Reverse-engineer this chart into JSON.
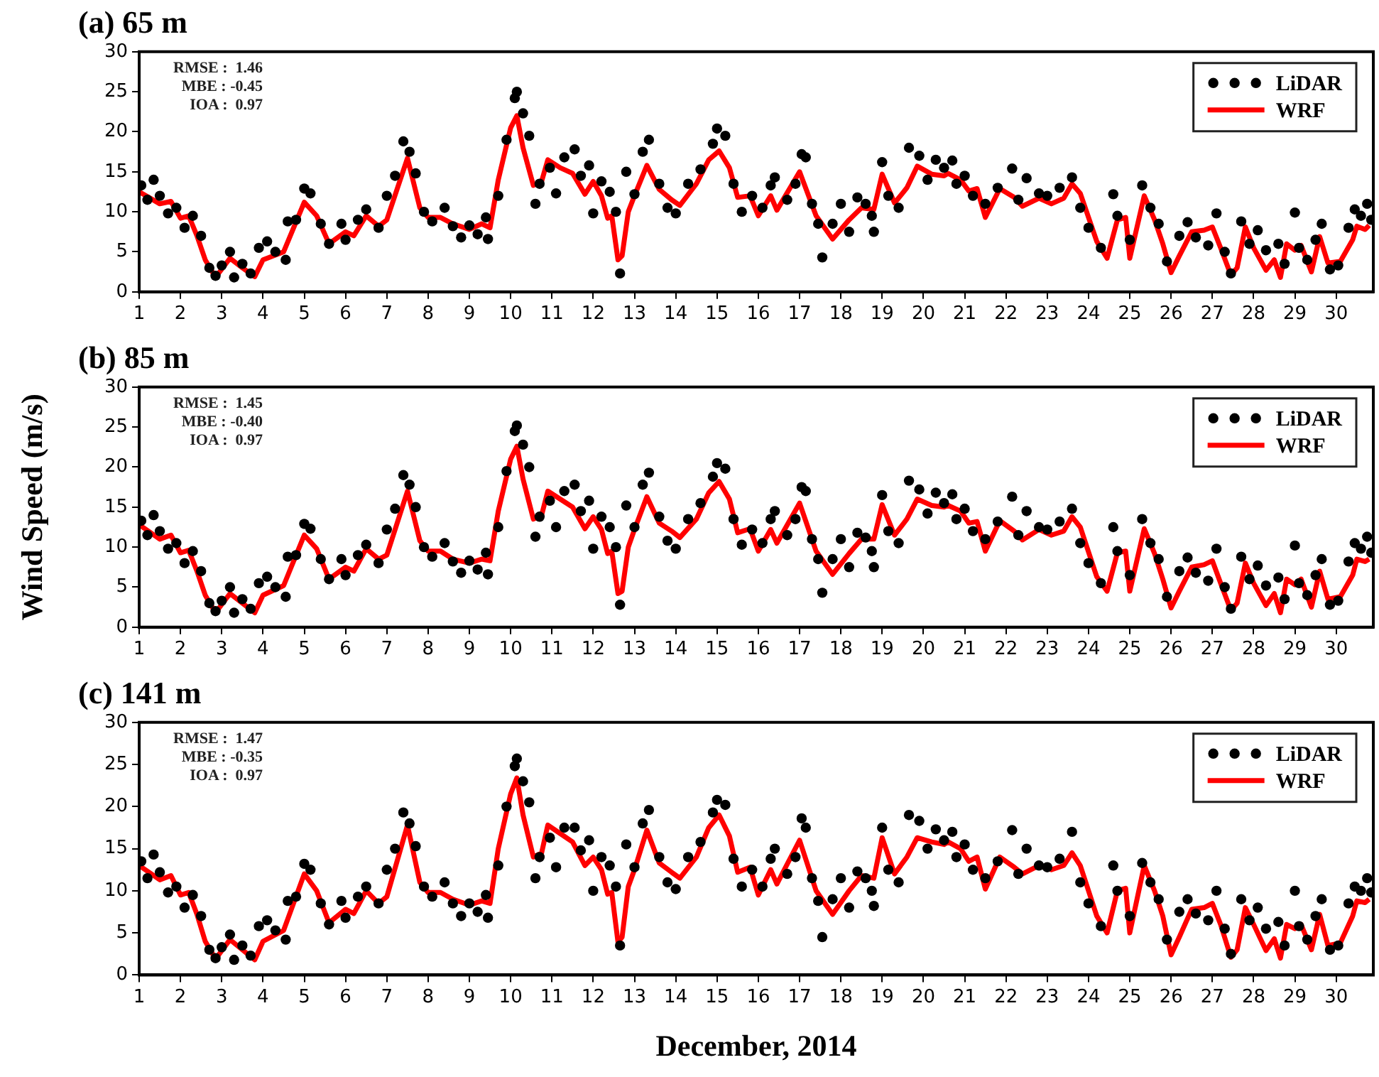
{
  "chart_data": [
    {
      "type": "line",
      "title": "(a) 65 m",
      "annotations": [
        "RMSE :  1.46",
        "MBE : -0.45",
        "IOA :  0.97"
      ],
      "xlim": [
        1,
        30.9
      ],
      "xticks": [
        1,
        2,
        3,
        4,
        5,
        6,
        7,
        8,
        9,
        10,
        11,
        12,
        13,
        14,
        15,
        16,
        17,
        18,
        19,
        20,
        21,
        22,
        23,
        24,
        25,
        26,
        27,
        28,
        29,
        30
      ],
      "ylim": [
        0,
        30
      ],
      "yticks": [
        0,
        5,
        10,
        15,
        20,
        25,
        30
      ],
      "legend": "top right",
      "series": [
        {
          "name": "LiDAR",
          "type": "scatter",
          "marker": "circle",
          "color": "#000000",
          "x": [
            1.05,
            1.2,
            1.35,
            1.5,
            1.7,
            1.9,
            2.1,
            2.3,
            2.5,
            2.7,
            2.85,
            3.0,
            3.2,
            3.3,
            3.5,
            3.7,
            3.9,
            4.1,
            4.3,
            4.55,
            4.6,
            4.8,
            5.0,
            5.15,
            5.4,
            5.6,
            5.9,
            6.0,
            6.3,
            6.5,
            6.8,
            7.0,
            7.2,
            7.4,
            7.55,
            7.7,
            7.9,
            8.1,
            8.4,
            8.6,
            8.8,
            9.0,
            9.2,
            9.4,
            9.45,
            9.7,
            9.9,
            10.1,
            10.15,
            10.3,
            10.45,
            10.6,
            10.7,
            10.95,
            11.1,
            11.3,
            11.55,
            11.7,
            11.9,
            12.0,
            12.2,
            12.4,
            12.55,
            12.65,
            12.8,
            13.0,
            13.2,
            13.35,
            13.6,
            13.8,
            14.0,
            14.3,
            14.6,
            14.9,
            15.0,
            15.2,
            15.4,
            15.6,
            15.85,
            16.1,
            16.3,
            16.4,
            16.7,
            16.9,
            17.05,
            17.15,
            17.3,
            17.45,
            17.55,
            17.8,
            18.0,
            18.2,
            18.4,
            18.6,
            18.75,
            18.8,
            19.0,
            19.15,
            19.4,
            19.65,
            19.9,
            20.1,
            20.3,
            20.5,
            20.7,
            20.8,
            21.0,
            21.2,
            21.5,
            21.8,
            22.15,
            22.3,
            22.5,
            22.8,
            23.0,
            23.3,
            23.6,
            23.8,
            24.0,
            24.3,
            24.6,
            24.7,
            25.0,
            25.3,
            25.5,
            25.7,
            25.9,
            26.2,
            26.4,
            26.6,
            26.9,
            27.1,
            27.3,
            27.45,
            27.7,
            27.9,
            28.1,
            28.3,
            28.6,
            28.75,
            29.0,
            29.1,
            29.3,
            29.5,
            29.65,
            29.85,
            30.05,
            30.3,
            30.45,
            30.6,
            30.75,
            30.85
          ],
          "values": [
            13.3,
            11.5,
            14,
            12,
            9.8,
            10.5,
            8,
            9.5,
            7,
            3,
            2,
            3.3,
            5,
            1.8,
            3.5,
            2.3,
            5.5,
            6.3,
            5,
            4,
            8.8,
            9,
            12.9,
            12.3,
            8.5,
            6,
            8.5,
            6.5,
            9,
            10.3,
            8,
            12,
            14.5,
            18.8,
            17.5,
            14.8,
            10,
            8.8,
            10.5,
            8.2,
            6.8,
            8.3,
            7.2,
            9.3,
            6.6,
            12,
            19,
            24.2,
            25,
            22.3,
            19.5,
            11,
            13.5,
            15.5,
            12.3,
            16.8,
            17.8,
            14.5,
            15.8,
            9.8,
            13.8,
            12.5,
            10,
            2.3,
            15,
            12.2,
            17.5,
            19,
            13.5,
            10.5,
            9.8,
            13.5,
            15.3,
            18.5,
            20.4,
            19.5,
            13.5,
            10,
            12,
            10.5,
            13.3,
            14.3,
            11.5,
            13.5,
            17.2,
            16.8,
            11,
            8.5,
            4.3,
            8.5,
            11,
            7.5,
            11.8,
            11,
            9.5,
            7.5,
            16.2,
            12,
            10.5,
            18,
            17,
            14,
            16.5,
            15.5,
            16.4,
            13.5,
            14.5,
            12,
            11,
            13,
            15.4,
            11.5,
            14.2,
            12.3,
            12,
            13,
            14.3,
            10.5,
            8,
            5.5,
            12.2,
            9.5,
            6.5,
            13.3,
            10.5,
            8.5,
            3.8,
            7,
            8.7,
            6.8,
            5.8,
            9.8,
            5,
            2.3,
            8.8,
            6,
            7.7,
            5.2,
            6,
            3.5,
            9.9,
            5.5,
            4,
            6.5,
            8.5,
            2.8,
            3.3,
            8,
            10.3,
            9.5,
            11,
            9
          ]
        },
        {
          "name": "WRF",
          "type": "line",
          "marker": "none",
          "line_style": "solid",
          "color": "#ff0000",
          "x": [
            1,
            1.5,
            1.77,
            2,
            2.2,
            2.4,
            2.6,
            2.85,
            3.2,
            3.5,
            3.8,
            4,
            4.5,
            5,
            5.3,
            5.6,
            6,
            6.2,
            6.5,
            6.8,
            7,
            7.5,
            7.8,
            8,
            8.3,
            8.6,
            9,
            9.3,
            9.5,
            9.7,
            10,
            10.15,
            10.3,
            10.55,
            10.75,
            10.9,
            11.2,
            11.5,
            11.8,
            12,
            12.2,
            12.35,
            12.45,
            12.6,
            12.7,
            12.85,
            13,
            13.3,
            13.6,
            13.9,
            14.1,
            14.5,
            14.8,
            15.05,
            15.3,
            15.5,
            15.8,
            16,
            16.3,
            16.45,
            17,
            17.4,
            17.8,
            18.2,
            18.5,
            18.8,
            19,
            19.3,
            19.6,
            19.85,
            20.2,
            20.5,
            20.6,
            20.9,
            21.1,
            21.3,
            21.5,
            21.85,
            22.2,
            22.4,
            22.8,
            23.1,
            23.4,
            23.6,
            23.8,
            24.2,
            24.45,
            24.7,
            24.9,
            25,
            25.35,
            25.6,
            25.8,
            26,
            26.2,
            26.5,
            26.8,
            27,
            27.2,
            27.45,
            27.6,
            27.8,
            28,
            28.3,
            28.5,
            28.65,
            28.8,
            29,
            29.15,
            29.4,
            29.6,
            29.8,
            30.1,
            30.4,
            30.5,
            30.7,
            30.8
          ],
          "values": [
            12.5,
            11,
            11.3,
            9.2,
            9.5,
            7,
            4,
            1.8,
            4.2,
            3,
            1.9,
            4,
            5,
            11.2,
            9.5,
            6,
            7.5,
            7,
            9.5,
            8.2,
            9,
            16.7,
            10.5,
            9.3,
            9.3,
            8.5,
            7.8,
            8.5,
            8,
            14,
            20.5,
            22,
            18,
            13.3,
            13.8,
            16.5,
            15.5,
            14.8,
            12.2,
            13.8,
            12,
            9.2,
            9.5,
            4,
            4.5,
            10,
            12,
            15.8,
            12.8,
            11.5,
            10.8,
            13.5,
            16.5,
            17.6,
            15.5,
            11.8,
            12,
            9.5,
            12,
            10.2,
            15,
            9.5,
            6.6,
            9,
            10.5,
            10.3,
            14.7,
            11.1,
            13,
            15.7,
            14.7,
            14.5,
            14.8,
            14,
            12.6,
            12.9,
            9.3,
            12.9,
            11.8,
            10.7,
            11.7,
            11,
            11.7,
            13.5,
            12.3,
            6.3,
            4.2,
            9,
            9.3,
            4.2,
            12,
            9,
            6,
            2.4,
            4.5,
            7.5,
            7.7,
            8.1,
            5.5,
            2.1,
            3,
            8.1,
            5.5,
            2.7,
            4,
            1.8,
            6,
            5.2,
            5.8,
            2.5,
            6.9,
            3.6,
            3.8,
            6.5,
            8.2,
            7.8,
            8.3
          ]
        }
      ]
    },
    {
      "type": "line",
      "title": "(b) 85 m",
      "ylabel": "Wind Speed (m/s)",
      "annotations": [
        "RMSE :  1.45",
        "MBE : -0.40",
        "IOA :  0.97"
      ],
      "xlim": [
        1,
        30.9
      ],
      "xticks": [
        1,
        2,
        3,
        4,
        5,
        6,
        7,
        8,
        9,
        10,
        11,
        12,
        13,
        14,
        15,
        16,
        17,
        18,
        19,
        20,
        21,
        22,
        23,
        24,
        25,
        26,
        27,
        28,
        29,
        30
      ],
      "ylim": [
        0,
        30
      ],
      "yticks": [
        0,
        5,
        10,
        15,
        20,
        25,
        30
      ],
      "legend": "top right",
      "series": [
        {
          "name": "LiDAR",
          "type": "scatter",
          "marker": "circle",
          "color": "#000000",
          "x": [
            1.05,
            1.2,
            1.35,
            1.5,
            1.7,
            1.9,
            2.1,
            2.3,
            2.5,
            2.7,
            2.85,
            3.0,
            3.2,
            3.3,
            3.5,
            3.7,
            3.9,
            4.1,
            4.3,
            4.55,
            4.6,
            4.8,
            5.0,
            5.15,
            5.4,
            5.6,
            5.9,
            6.0,
            6.3,
            6.5,
            6.8,
            7.0,
            7.2,
            7.4,
            7.55,
            7.7,
            7.9,
            8.1,
            8.4,
            8.6,
            8.8,
            9.0,
            9.2,
            9.4,
            9.45,
            9.7,
            9.9,
            10.1,
            10.15,
            10.3,
            10.45,
            10.6,
            10.7,
            10.95,
            11.1,
            11.3,
            11.55,
            11.7,
            11.9,
            12.0,
            12.2,
            12.4,
            12.55,
            12.65,
            12.8,
            13.0,
            13.2,
            13.35,
            13.6,
            13.8,
            14.0,
            14.3,
            14.6,
            14.9,
            15.0,
            15.2,
            15.4,
            15.6,
            15.85,
            16.1,
            16.3,
            16.4,
            16.7,
            16.9,
            17.05,
            17.15,
            17.3,
            17.45,
            17.55,
            17.8,
            18.0,
            18.2,
            18.4,
            18.6,
            18.75,
            18.8,
            19.0,
            19.15,
            19.4,
            19.65,
            19.9,
            20.1,
            20.3,
            20.5,
            20.7,
            20.8,
            21.0,
            21.2,
            21.5,
            21.8,
            22.15,
            22.3,
            22.5,
            22.8,
            23.0,
            23.3,
            23.6,
            23.8,
            24.0,
            24.3,
            24.6,
            24.7,
            25.0,
            25.3,
            25.5,
            25.7,
            25.9,
            26.2,
            26.4,
            26.6,
            26.9,
            27.1,
            27.3,
            27.45,
            27.7,
            27.9,
            28.1,
            28.3,
            28.6,
            28.75,
            29.0,
            29.1,
            29.3,
            29.5,
            29.65,
            29.85,
            30.05,
            30.3,
            30.45,
            30.6,
            30.75,
            30.85
          ],
          "values": [
            13.3,
            11.5,
            14,
            12,
            9.8,
            10.5,
            8,
            9.5,
            7,
            3,
            2,
            3.3,
            5,
            1.8,
            3.5,
            2.3,
            5.5,
            6.3,
            5,
            3.8,
            8.8,
            9,
            12.9,
            12.3,
            8.5,
            6,
            8.5,
            6.5,
            9,
            10.3,
            8,
            12.2,
            14.8,
            19,
            17.8,
            15,
            10,
            8.8,
            10.5,
            8.2,
            6.8,
            8.3,
            7.2,
            9.3,
            6.6,
            12.5,
            19.5,
            24.5,
            25.2,
            22.8,
            20,
            11.3,
            13.8,
            15.8,
            12.5,
            17,
            17.8,
            14.5,
            15.8,
            9.8,
            13.8,
            12.5,
            10,
            2.8,
            15.2,
            12.5,
            17.8,
            19.3,
            13.8,
            10.8,
            9.8,
            13.5,
            15.5,
            18.8,
            20.5,
            19.8,
            13.5,
            10.3,
            12.2,
            10.5,
            13.5,
            14.5,
            11.5,
            13.5,
            17.5,
            17,
            11,
            8.5,
            4.3,
            8.5,
            11,
            7.5,
            11.8,
            11.2,
            9.5,
            7.5,
            16.5,
            12,
            10.5,
            18.3,
            17.2,
            14.2,
            16.8,
            15.5,
            16.6,
            13.5,
            14.8,
            12,
            11,
            13.2,
            16.3,
            11.5,
            14.5,
            12.5,
            12.2,
            13.2,
            14.8,
            10.5,
            8,
            5.5,
            12.5,
            9.5,
            6.5,
            13.5,
            10.5,
            8.5,
            3.8,
            7,
            8.7,
            6.8,
            5.8,
            9.8,
            5,
            2.3,
            8.8,
            6,
            7.7,
            5.2,
            6.2,
            3.5,
            10.2,
            5.5,
            4,
            6.5,
            8.5,
            2.8,
            3.3,
            8.2,
            10.5,
            9.8,
            11.3,
            9.3
          ]
        },
        {
          "name": "WRF",
          "type": "line",
          "marker": "none",
          "line_style": "solid",
          "color": "#ff0000",
          "x": [
            1,
            1.5,
            1.77,
            2,
            2.2,
            2.4,
            2.6,
            2.85,
            3.2,
            3.5,
            3.8,
            4,
            4.5,
            5,
            5.3,
            5.6,
            6,
            6.2,
            6.5,
            6.8,
            7,
            7.5,
            7.8,
            8,
            8.3,
            8.6,
            9,
            9.3,
            9.5,
            9.7,
            10,
            10.15,
            10.3,
            10.55,
            10.75,
            10.9,
            11.2,
            11.5,
            11.8,
            12,
            12.2,
            12.35,
            12.45,
            12.6,
            12.7,
            12.85,
            13,
            13.3,
            13.6,
            13.9,
            14.1,
            14.5,
            14.8,
            15.05,
            15.3,
            15.5,
            15.8,
            16,
            16.3,
            16.45,
            17,
            17.4,
            17.8,
            18.2,
            18.5,
            18.8,
            19,
            19.3,
            19.6,
            19.85,
            20.2,
            20.5,
            20.6,
            20.9,
            21.1,
            21.3,
            21.5,
            21.85,
            22.2,
            22.4,
            22.8,
            23.1,
            23.4,
            23.6,
            23.8,
            24.2,
            24.45,
            24.7,
            24.9,
            25,
            25.35,
            25.6,
            25.8,
            26,
            26.2,
            26.5,
            26.8,
            27,
            27.2,
            27.45,
            27.6,
            27.8,
            28,
            28.3,
            28.5,
            28.65,
            28.8,
            29,
            29.15,
            29.4,
            29.6,
            29.8,
            30.1,
            30.4,
            30.5,
            30.7,
            30.8
          ],
          "values": [
            12.8,
            11,
            11.5,
            9.3,
            9.6,
            7,
            4,
            1.8,
            4.2,
            3,
            1.8,
            4,
            5.2,
            11.5,
            9.8,
            6,
            7.5,
            7,
            9.8,
            8.5,
            9,
            17,
            10.8,
            9.5,
            9.5,
            8.5,
            8,
            8.5,
            8.3,
            14.5,
            21,
            22.6,
            18.5,
            13.5,
            14,
            17,
            16,
            15,
            12.3,
            13.8,
            12.2,
            9.2,
            9.5,
            4.2,
            4.5,
            10,
            12.2,
            16.3,
            13,
            12,
            11.2,
            13.5,
            16.8,
            18.2,
            16,
            11.8,
            12.3,
            9.5,
            12.2,
            10.5,
            15.5,
            9.5,
            6.6,
            9.2,
            11,
            11,
            15.3,
            11.5,
            13.5,
            16,
            15.2,
            15,
            15.2,
            14.5,
            13,
            13.2,
            9.5,
            13.3,
            12,
            10.9,
            12.2,
            11.5,
            12,
            13.8,
            12.5,
            6.3,
            4.5,
            9.3,
            9.5,
            4.5,
            12.3,
            9.2,
            6,
            2.4,
            4.5,
            7.5,
            7.8,
            8.3,
            5.5,
            2.1,
            3,
            8,
            5.5,
            2.7,
            4.2,
            1.8,
            6,
            5.3,
            6,
            2.5,
            7,
            3.5,
            3.8,
            6.5,
            8.5,
            8.2,
            8.5
          ]
        }
      ]
    },
    {
      "type": "line",
      "title": "(c) 141 m",
      "xlabel": "December, 2014",
      "annotations": [
        "RMSE :  1.47",
        "MBE : -0.35",
        "IOA :  0.97"
      ],
      "xlim": [
        1,
        30.9
      ],
      "xticks": [
        1,
        2,
        3,
        4,
        5,
        6,
        7,
        8,
        9,
        10,
        11,
        12,
        13,
        14,
        15,
        16,
        17,
        18,
        19,
        20,
        21,
        22,
        23,
        24,
        25,
        26,
        27,
        28,
        29,
        30
      ],
      "ylim": [
        0,
        30
      ],
      "yticks": [
        0,
        5,
        10,
        15,
        20,
        25,
        30
      ],
      "legend": "top right",
      "series": [
        {
          "name": "LiDAR",
          "type": "scatter",
          "marker": "circle",
          "color": "#000000",
          "x": [
            1.05,
            1.2,
            1.35,
            1.5,
            1.7,
            1.9,
            2.1,
            2.3,
            2.5,
            2.7,
            2.85,
            3.0,
            3.2,
            3.3,
            3.5,
            3.7,
            3.9,
            4.1,
            4.3,
            4.55,
            4.6,
            4.8,
            5.0,
            5.15,
            5.4,
            5.6,
            5.9,
            6.0,
            6.3,
            6.5,
            6.8,
            7.0,
            7.2,
            7.4,
            7.55,
            7.7,
            7.9,
            8.1,
            8.4,
            8.6,
            8.8,
            9.0,
            9.2,
            9.4,
            9.45,
            9.7,
            9.9,
            10.1,
            10.15,
            10.3,
            10.45,
            10.6,
            10.7,
            10.95,
            11.1,
            11.3,
            11.55,
            11.7,
            11.9,
            12.0,
            12.2,
            12.4,
            12.55,
            12.65,
            12.8,
            13.0,
            13.2,
            13.35,
            13.6,
            13.8,
            14.0,
            14.3,
            14.6,
            14.9,
            15.0,
            15.2,
            15.4,
            15.6,
            15.85,
            16.1,
            16.3,
            16.4,
            16.7,
            16.9,
            17.05,
            17.15,
            17.3,
            17.45,
            17.55,
            17.8,
            18.0,
            18.2,
            18.4,
            18.6,
            18.75,
            18.8,
            19.0,
            19.15,
            19.4,
            19.65,
            19.9,
            20.1,
            20.3,
            20.5,
            20.7,
            20.8,
            21.0,
            21.2,
            21.5,
            21.8,
            22.15,
            22.3,
            22.5,
            22.8,
            23.0,
            23.3,
            23.6,
            23.8,
            24.0,
            24.3,
            24.6,
            24.7,
            25.0,
            25.3,
            25.5,
            25.7,
            25.9,
            26.2,
            26.4,
            26.6,
            26.9,
            27.1,
            27.3,
            27.45,
            27.7,
            27.9,
            28.1,
            28.3,
            28.6,
            28.75,
            29.0,
            29.1,
            29.3,
            29.5,
            29.65,
            29.85,
            30.05,
            30.3,
            30.45,
            30.6,
            30.75,
            30.85
          ],
          "values": [
            13.5,
            11.5,
            14.3,
            12.2,
            9.8,
            10.5,
            8,
            9.5,
            7,
            3,
            2,
            3.3,
            4.8,
            1.8,
            3.5,
            2.3,
            5.8,
            6.5,
            5.3,
            4.2,
            8.8,
            9.3,
            13.2,
            12.5,
            8.5,
            6,
            8.8,
            6.8,
            9.3,
            10.5,
            8.5,
            12.5,
            15,
            19.3,
            18,
            15.3,
            10.5,
            9.3,
            11,
            8.5,
            7,
            8.5,
            7.5,
            9.5,
            6.8,
            13,
            20,
            24.8,
            25.7,
            23,
            20.5,
            11.5,
            14,
            16.3,
            12.8,
            17.5,
            17.5,
            14.8,
            16,
            10,
            14,
            13,
            10.5,
            3.5,
            15.5,
            12.8,
            18,
            19.6,
            14,
            11,
            10.2,
            14,
            15.8,
            19.3,
            20.8,
            20.2,
            13.8,
            10.5,
            12.5,
            10.5,
            13.8,
            15,
            12,
            14,
            18.6,
            17.5,
            11.5,
            8.8,
            4.5,
            9,
            11.5,
            8,
            12.3,
            11.5,
            10,
            8.2,
            17.5,
            12.5,
            11,
            19,
            18.3,
            15,
            17.3,
            16,
            17,
            14,
            15.5,
            12.5,
            11.5,
            13.5,
            17.2,
            12,
            15,
            13,
            12.8,
            13.8,
            17,
            11,
            8.5,
            5.8,
            13,
            10,
            7,
            13.3,
            11,
            9,
            4.2,
            7.5,
            9,
            7.3,
            6.5,
            10,
            5.5,
            2.5,
            9,
            6.5,
            8,
            5.5,
            6.3,
            3.5,
            10,
            5.8,
            4.2,
            7,
            9,
            3,
            3.5,
            8.5,
            10.5,
            10,
            11.5,
            9.8
          ]
        },
        {
          "name": "WRF",
          "type": "line",
          "marker": "none",
          "line_style": "solid",
          "color": "#ff0000",
          "x": [
            1,
            1.5,
            1.77,
            2,
            2.2,
            2.4,
            2.6,
            2.85,
            3.2,
            3.5,
            3.8,
            4,
            4.5,
            5,
            5.3,
            5.6,
            6,
            6.2,
            6.5,
            6.8,
            7,
            7.5,
            7.8,
            8,
            8.3,
            8.6,
            9,
            9.3,
            9.5,
            9.7,
            10,
            10.15,
            10.3,
            10.55,
            10.75,
            10.9,
            11.2,
            11.5,
            11.8,
            12,
            12.2,
            12.35,
            12.45,
            12.6,
            12.7,
            12.85,
            13,
            13.3,
            13.6,
            13.9,
            14.1,
            14.5,
            14.8,
            15.05,
            15.3,
            15.5,
            15.8,
            16,
            16.3,
            16.45,
            17,
            17.4,
            17.8,
            18.2,
            18.5,
            18.8,
            19,
            19.3,
            19.6,
            19.85,
            20.2,
            20.5,
            20.6,
            20.9,
            21.1,
            21.3,
            21.5,
            21.85,
            22.2,
            22.4,
            22.8,
            23.1,
            23.4,
            23.6,
            23.8,
            24.2,
            24.45,
            24.7,
            24.9,
            25,
            25.35,
            25.6,
            25.8,
            26,
            26.2,
            26.5,
            26.8,
            27,
            27.2,
            27.45,
            27.6,
            27.8,
            28,
            28.3,
            28.5,
            28.65,
            28.8,
            29,
            29.15,
            29.4,
            29.6,
            29.8,
            30.1,
            30.4,
            30.5,
            30.7,
            30.8
          ],
          "values": [
            13,
            11.3,
            11.8,
            9.5,
            9.8,
            7.2,
            4,
            1.9,
            4.2,
            3,
            1.8,
            4,
            5.3,
            12,
            10,
            6.2,
            7.8,
            7.3,
            10,
            8.5,
            9.3,
            17.8,
            11,
            9.8,
            9.8,
            9,
            8.3,
            8.8,
            8.5,
            15,
            21.5,
            23.4,
            19,
            14,
            14.5,
            17.8,
            16.8,
            15.8,
            13,
            14,
            12.5,
            9.6,
            9.8,
            3.9,
            4.5,
            10.5,
            12.5,
            17.2,
            13.3,
            12.2,
            11.5,
            14,
            17.5,
            19,
            16.5,
            12.2,
            12.8,
            9.5,
            12.5,
            10.8,
            16,
            10,
            7.2,
            10,
            11.8,
            11.5,
            16.3,
            12,
            14,
            16.3,
            15.8,
            15.5,
            15.8,
            15,
            13.5,
            14,
            10.2,
            14,
            12.8,
            12,
            13,
            12.5,
            13,
            14.5,
            13,
            7,
            5,
            10,
            10.3,
            5,
            13,
            10,
            7,
            2.4,
            4.5,
            7.8,
            8,
            8.5,
            6,
            2.1,
            3,
            8,
            6,
            2.9,
            4.3,
            2,
            6,
            5.5,
            6,
            3,
            7.2,
            3.5,
            3.8,
            7,
            8.8,
            8.6,
            9
          ]
        }
      ]
    }
  ]
}
